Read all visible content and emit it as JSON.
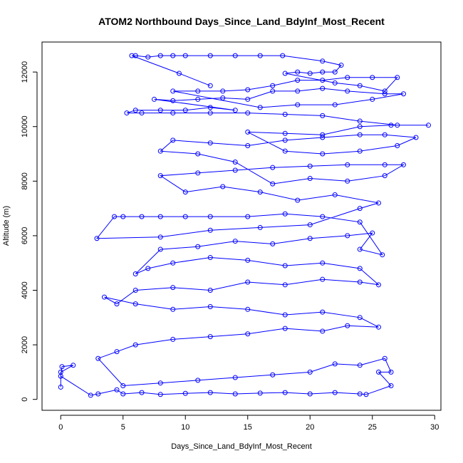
{
  "chart_data": {
    "type": "scatter",
    "title": "ATOM2 Northbound Days_Since_Land_BdyInf_Most_Recent",
    "xlabel": "Days_Since_Land_BdyInf_Most_Recent",
    "ylabel": "Altitude (m)",
    "xlim": [
      -1.5,
      30.5
    ],
    "ylim": [
      -400,
      13100
    ],
    "xticks": [
      0,
      5,
      10,
      15,
      20,
      25,
      30
    ],
    "yticks": [
      0,
      2000,
      4000,
      6000,
      8000,
      10000,
      12000
    ],
    "grid": false,
    "connected": true,
    "colors": {
      "series": "#0000ff",
      "axis": "#000000"
    },
    "series": [
      {
        "marker": "open-circle",
        "points": [
          [
            0.0,
            450
          ],
          [
            0.0,
            1000
          ],
          [
            1.0,
            1250
          ],
          [
            0.1,
            1200
          ],
          [
            0.0,
            850
          ],
          [
            2.4,
            150
          ],
          [
            3.0,
            200
          ],
          [
            4.5,
            350
          ],
          [
            5.0,
            200
          ],
          [
            6.5,
            250
          ],
          [
            8.0,
            180
          ],
          [
            10.0,
            220
          ],
          [
            12.0,
            250
          ],
          [
            14.0,
            200
          ],
          [
            16.0,
            230
          ],
          [
            18.0,
            250
          ],
          [
            20.0,
            200
          ],
          [
            22.0,
            250
          ],
          [
            24.0,
            200
          ],
          [
            24.5,
            180
          ],
          [
            26.5,
            500
          ],
          [
            25.5,
            1000
          ],
          [
            26.5,
            1000
          ],
          [
            26.0,
            1500
          ],
          [
            24.0,
            1250
          ],
          [
            22.0,
            1300
          ],
          [
            20.0,
            1000
          ],
          [
            17.0,
            900
          ],
          [
            14.0,
            800
          ],
          [
            11.0,
            700
          ],
          [
            8.0,
            600
          ],
          [
            5.0,
            500
          ],
          [
            3.0,
            1500
          ],
          [
            4.5,
            1750
          ],
          [
            6.0,
            2000
          ],
          [
            9.0,
            2200
          ],
          [
            12.0,
            2300
          ],
          [
            15.0,
            2400
          ],
          [
            18.0,
            2600
          ],
          [
            21.0,
            2500
          ],
          [
            23.0,
            2700
          ],
          [
            25.5,
            2650
          ],
          [
            24.0,
            3000
          ],
          [
            21.0,
            3200
          ],
          [
            18.0,
            3100
          ],
          [
            15.0,
            3300
          ],
          [
            12.0,
            3400
          ],
          [
            9.0,
            3300
          ],
          [
            6.0,
            3500
          ],
          [
            3.5,
            3750
          ],
          [
            4.5,
            3500
          ],
          [
            6.0,
            4000
          ],
          [
            9.0,
            4100
          ],
          [
            12.0,
            4000
          ],
          [
            15.0,
            4300
          ],
          [
            18.0,
            4200
          ],
          [
            21.0,
            4400
          ],
          [
            24.0,
            4300
          ],
          [
            25.5,
            4200
          ],
          [
            24.0,
            4800
          ],
          [
            21.0,
            5000
          ],
          [
            18.0,
            4900
          ],
          [
            15.0,
            5100
          ],
          [
            12.0,
            5200
          ],
          [
            9.0,
            5000
          ],
          [
            7.0,
            4800
          ],
          [
            6.0,
            4600
          ],
          [
            8.0,
            5500
          ],
          [
            11.0,
            5600
          ],
          [
            14.0,
            5800
          ],
          [
            17.0,
            5700
          ],
          [
            20.0,
            5900
          ],
          [
            23.0,
            6000
          ],
          [
            25.0,
            6100
          ],
          [
            24.0,
            5500
          ],
          [
            25.8,
            5300
          ],
          [
            24.0,
            6500
          ],
          [
            21.0,
            6700
          ],
          [
            18.0,
            6800
          ],
          [
            15.0,
            6700
          ],
          [
            12.0,
            6700
          ],
          [
            10.0,
            6700
          ],
          [
            8.0,
            6700
          ],
          [
            6.5,
            6700
          ],
          [
            5.0,
            6700
          ],
          [
            4.3,
            6700
          ],
          [
            2.9,
            5900
          ],
          [
            8.0,
            5950
          ],
          [
            12.0,
            6200
          ],
          [
            16.0,
            6300
          ],
          [
            20.0,
            6400
          ],
          [
            24.0,
            7000
          ],
          [
            25.5,
            7200
          ],
          [
            22.0,
            7500
          ],
          [
            19.0,
            7300
          ],
          [
            16.0,
            7600
          ],
          [
            13.0,
            7800
          ],
          [
            10.0,
            7600
          ],
          [
            8.0,
            8200
          ],
          [
            11.0,
            8300
          ],
          [
            14.0,
            8400
          ],
          [
            17.0,
            8500
          ],
          [
            20.0,
            8550
          ],
          [
            23.0,
            8600
          ],
          [
            26.0,
            8600
          ],
          [
            27.5,
            8600
          ],
          [
            26.0,
            8200
          ],
          [
            23.0,
            8000
          ],
          [
            20.0,
            8100
          ],
          [
            17.0,
            7900
          ],
          [
            14.0,
            8700
          ],
          [
            11.0,
            9000
          ],
          [
            8.0,
            9100
          ],
          [
            9.0,
            9500
          ],
          [
            12.0,
            9400
          ],
          [
            15.0,
            9300
          ],
          [
            18.0,
            9500
          ],
          [
            21.0,
            9600
          ],
          [
            24.0,
            9700
          ],
          [
            26.0,
            9700
          ],
          [
            28.5,
            9600
          ],
          [
            27.0,
            9300
          ],
          [
            24.0,
            9100
          ],
          [
            21.0,
            9000
          ],
          [
            18.0,
            9100
          ],
          [
            15.0,
            9800
          ],
          [
            18.0,
            9750
          ],
          [
            21.0,
            9700
          ],
          [
            24.0,
            10000
          ],
          [
            26.5,
            10050
          ],
          [
            29.5,
            10050
          ],
          [
            27.0,
            10050
          ],
          [
            24.0,
            10200
          ],
          [
            21.0,
            10400
          ],
          [
            18.0,
            10450
          ],
          [
            15.0,
            10500
          ],
          [
            12.0,
            10500
          ],
          [
            9.0,
            10500
          ],
          [
            6.5,
            10500
          ],
          [
            5.3,
            10500
          ],
          [
            6.0,
            10600
          ],
          [
            8.0,
            10600
          ],
          [
            10.0,
            10600
          ],
          [
            12.0,
            10700
          ],
          [
            14.0,
            10600
          ],
          [
            7.5,
            11000
          ],
          [
            9.0,
            10950
          ],
          [
            11.0,
            11000
          ],
          [
            13.0,
            11050
          ],
          [
            15.0,
            11000
          ],
          [
            17.0,
            11300
          ],
          [
            19.0,
            11300
          ],
          [
            21.0,
            11400
          ],
          [
            23.0,
            11300
          ],
          [
            26.0,
            11200
          ],
          [
            27.5,
            11200
          ],
          [
            25.0,
            11000
          ],
          [
            22.0,
            10800
          ],
          [
            19.0,
            10800
          ],
          [
            16.0,
            10700
          ],
          [
            9.0,
            11300
          ],
          [
            11.0,
            11300
          ],
          [
            13.0,
            11300
          ],
          [
            15.0,
            11350
          ],
          [
            17.0,
            11500
          ],
          [
            19.0,
            11700
          ],
          [
            21.0,
            11700
          ],
          [
            23.0,
            11800
          ],
          [
            25.0,
            11800
          ],
          [
            27.0,
            11800
          ],
          [
            26.0,
            11300
          ],
          [
            24.0,
            11500
          ],
          [
            22.0,
            11600
          ],
          [
            18.0,
            11950
          ],
          [
            19.0,
            12000
          ],
          [
            20.0,
            11950
          ],
          [
            21.0,
            12000
          ],
          [
            22.0,
            12000
          ],
          [
            22.5,
            12250
          ],
          [
            21.0,
            12400
          ],
          [
            17.8,
            12600
          ],
          [
            16.0,
            12600
          ],
          [
            14.0,
            12600
          ],
          [
            12.0,
            12600
          ],
          [
            10.0,
            12600
          ],
          [
            9.0,
            12600
          ],
          [
            8.0,
            12600
          ],
          [
            7.0,
            12550
          ],
          [
            6.0,
            12600
          ],
          [
            5.7,
            12600
          ],
          [
            9.5,
            11950
          ],
          [
            12.0,
            11500
          ]
        ]
      }
    ]
  }
}
